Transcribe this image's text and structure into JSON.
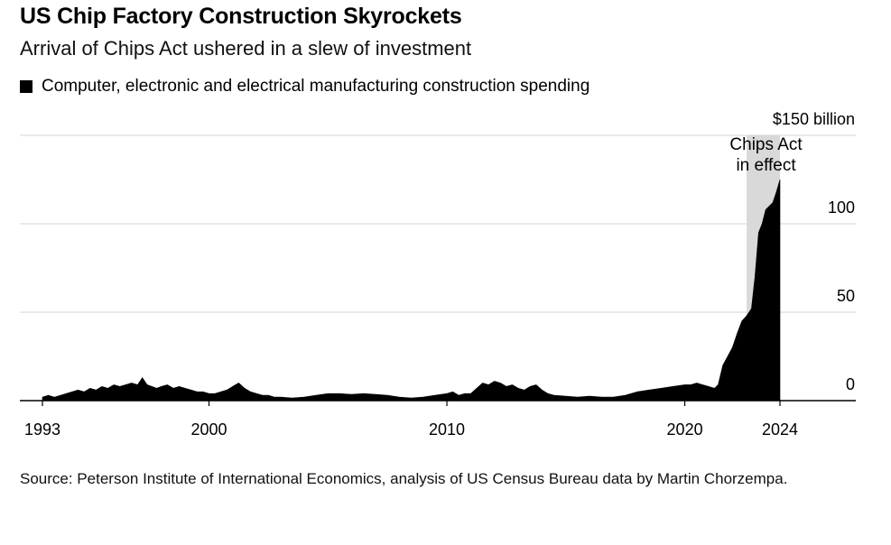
{
  "header": {
    "title": "US Chip Factory Construction Skyrockets",
    "subtitle": "Arrival of Chips Act ushered in a slew of investment"
  },
  "legend": {
    "label": "Computer, electronic and electrical manufacturing construction spending",
    "color": "#000000"
  },
  "footer": {
    "source": "Source: Peterson Institute of International Economics, analysis of US Census Bureau data by Martin Chorzempa."
  },
  "chart_data": {
    "type": "area",
    "title": "US Chip Factory Construction Skyrockets",
    "subtitle": "Arrival of Chips Act ushered in a slew of investment",
    "xlabel": "",
    "ylabel": "",
    "y_unit_label": "$150 billion",
    "xlim": [
      1993,
      2027.2
    ],
    "ylim": [
      0,
      150
    ],
    "x_ticks": [
      1993,
      2000,
      2010,
      2020,
      2024
    ],
    "x_tick_labels": [
      "1993",
      "2000",
      "2010",
      "2020",
      "2024"
    ],
    "y_ticks": [
      0,
      50,
      100,
      150
    ],
    "y_tick_labels": [
      "0",
      "50",
      "100",
      "$150 billion"
    ],
    "grid": true,
    "legend_position": "top-left",
    "series": [
      {
        "name": "Computer, electronic and electrical manufacturing construction spending",
        "color": "#000000",
        "x": [
          1993.0,
          1993.25,
          1993.5,
          1993.75,
          1994.0,
          1994.25,
          1994.5,
          1994.75,
          1995.0,
          1995.25,
          1995.5,
          1995.75,
          1996.0,
          1996.25,
          1996.5,
          1996.75,
          1997.0,
          1997.2,
          1997.4,
          1997.6,
          1997.8,
          1998.0,
          1998.25,
          1998.5,
          1998.75,
          1999.0,
          1999.25,
          1999.5,
          1999.75,
          2000.0,
          2000.25,
          2000.5,
          2000.75,
          2001.0,
          2001.25,
          2001.5,
          2001.75,
          2002.0,
          2002.25,
          2002.5,
          2002.75,
          2003.0,
          2003.5,
          2004.0,
          2004.5,
          2005.0,
          2005.5,
          2006.0,
          2006.5,
          2007.0,
          2007.5,
          2008.0,
          2008.5,
          2009.0,
          2009.5,
          2010.0,
          2010.25,
          2010.5,
          2010.75,
          2011.0,
          2011.25,
          2011.5,
          2011.75,
          2012.0,
          2012.25,
          2012.5,
          2012.75,
          2013.0,
          2013.25,
          2013.5,
          2013.75,
          2014.0,
          2014.25,
          2014.5,
          2015.0,
          2015.5,
          2016.0,
          2016.5,
          2017.0,
          2017.5,
          2018.0,
          2018.5,
          2019.0,
          2019.5,
          2020.0,
          2020.25,
          2020.5,
          2020.75,
          2021.0,
          2021.25,
          2021.4,
          2021.6,
          2021.8,
          2022.0,
          2022.2,
          2022.4,
          2022.6,
          2022.8,
          2022.95,
          2023.1,
          2023.25,
          2023.4,
          2023.55,
          2023.7,
          2023.85,
          2024.0
        ],
        "values": [
          2,
          3,
          2,
          3,
          4,
          5,
          6,
          5,
          7,
          6,
          8,
          7,
          9,
          8,
          9,
          10,
          9,
          13,
          9,
          8,
          7,
          8,
          9,
          7,
          8,
          7,
          6,
          5,
          5,
          4,
          4,
          5,
          6,
          8,
          10,
          7,
          5,
          4,
          3,
          3,
          2,
          2,
          1.5,
          2,
          3,
          4,
          4,
          3.5,
          4,
          3.5,
          3,
          2,
          1.5,
          2,
          3,
          4,
          5,
          3,
          4,
          4,
          7,
          10,
          9,
          11,
          10,
          8,
          9,
          7,
          6,
          8,
          9,
          6,
          4,
          3,
          2.5,
          2,
          2.5,
          2,
          2,
          3,
          5,
          6,
          7,
          8,
          9,
          9,
          10,
          9,
          8,
          7,
          9,
          20,
          25,
          30,
          38,
          45,
          48,
          52,
          70,
          95,
          100,
          108,
          110,
          112,
          118,
          125
        ]
      }
    ],
    "annotations": [
      {
        "text": "Chips Act in effect",
        "lines": [
          "Chips Act",
          "in effect"
        ],
        "x_start": 2022.6,
        "x_end": 2024.0,
        "fill": "#d9d9d9"
      }
    ]
  }
}
